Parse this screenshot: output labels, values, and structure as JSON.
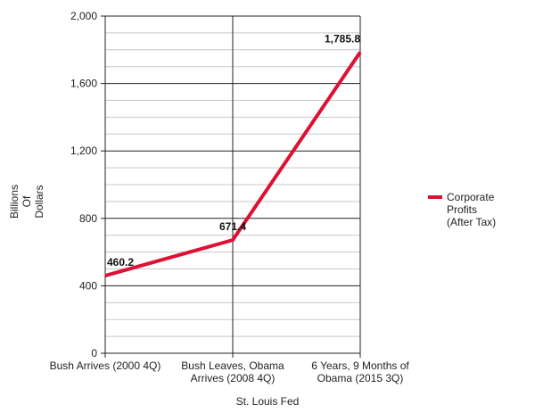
{
  "chart_data": {
    "type": "line",
    "categories": [
      [
        "Bush Arrives (2000 4Q)"
      ],
      [
        "Bush Leaves, Obama",
        "Arrives (2008 4Q)"
      ],
      [
        "6 Years, 9 Months of",
        "Obama (2015 3Q)"
      ]
    ],
    "series": [
      {
        "name": [
          "Corporate",
          "Profits",
          "(After Tax)"
        ],
        "values": [
          460.2,
          671.4,
          1785.8
        ],
        "color": "#dd1133"
      }
    ],
    "data_labels": [
      "460.2",
      "671.4",
      "1,785.8"
    ],
    "ylabel": [
      "Billions",
      "Of",
      "Dollars"
    ],
    "xlabel": "St. Louis Fed",
    "ylim": [
      0,
      2000
    ],
    "yticks": [
      0,
      400,
      800,
      1200,
      1600,
      2000
    ],
    "ytick_labels": [
      "0",
      "400",
      "800",
      "1,200",
      "1,600",
      "2,000"
    ],
    "grid": {
      "major": true,
      "minor": true
    },
    "legend_position": "right"
  }
}
